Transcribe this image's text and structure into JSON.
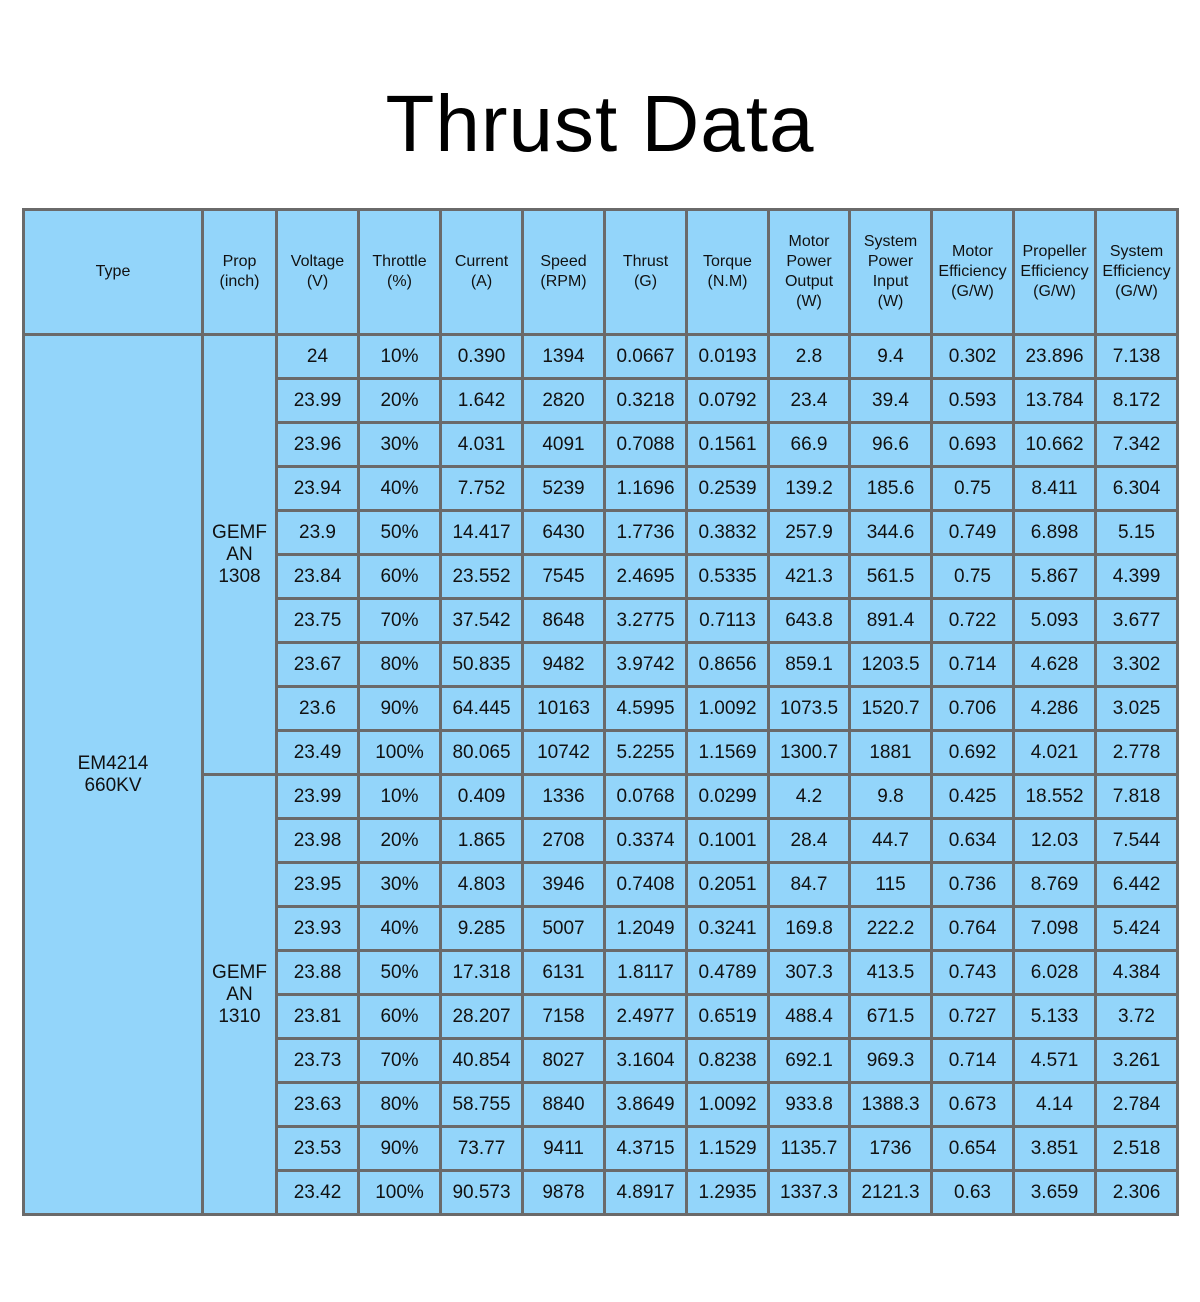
{
  "title": "Thrust Data",
  "table": {
    "headers": [
      [
        "Type"
      ],
      [
        "Prop",
        "(inch)"
      ],
      [
        "Voltage",
        "(V)"
      ],
      [
        "Throttle",
        "(%)"
      ],
      [
        "Current",
        "(A)"
      ],
      [
        "Speed",
        "(RPM)"
      ],
      [
        "Thrust",
        "(G)"
      ],
      [
        "Torque",
        "(N.M)"
      ],
      [
        "Motor",
        "Power",
        "Output",
        "(W)"
      ],
      [
        "System",
        "Power",
        "Input",
        "(W)"
      ],
      [
        "Motor",
        "Efficiency",
        "(G/W)"
      ],
      [
        "Propeller",
        "Efficiency",
        "(G/W)"
      ],
      [
        "System",
        "Efficiency",
        "(G/W)"
      ]
    ],
    "type": [
      "EM4214",
      "660KV"
    ],
    "groups": [
      {
        "prop": [
          "GEMF",
          "AN",
          "1308"
        ],
        "rows": [
          [
            "24",
            "10%",
            "0.390",
            "1394",
            "0.0667",
            "0.0193",
            "2.8",
            "9.4",
            "0.302",
            "23.896",
            "7.138"
          ],
          [
            "23.99",
            "20%",
            "1.642",
            "2820",
            "0.3218",
            "0.0792",
            "23.4",
            "39.4",
            "0.593",
            "13.784",
            "8.172"
          ],
          [
            "23.96",
            "30%",
            "4.031",
            "4091",
            "0.7088",
            "0.1561",
            "66.9",
            "96.6",
            "0.693",
            "10.662",
            "7.342"
          ],
          [
            "23.94",
            "40%",
            "7.752",
            "5239",
            "1.1696",
            "0.2539",
            "139.2",
            "185.6",
            "0.75",
            "8.411",
            "6.304"
          ],
          [
            "23.9",
            "50%",
            "14.417",
            "6430",
            "1.7736",
            "0.3832",
            "257.9",
            "344.6",
            "0.749",
            "6.898",
            "5.15"
          ],
          [
            "23.84",
            "60%",
            "23.552",
            "7545",
            "2.4695",
            "0.5335",
            "421.3",
            "561.5",
            "0.75",
            "5.867",
            "4.399"
          ],
          [
            "23.75",
            "70%",
            "37.542",
            "8648",
            "3.2775",
            "0.7113",
            "643.8",
            "891.4",
            "0.722",
            "5.093",
            "3.677"
          ],
          [
            "23.67",
            "80%",
            "50.835",
            "9482",
            "3.9742",
            "0.8656",
            "859.1",
            "1203.5",
            "0.714",
            "4.628",
            "3.302"
          ],
          [
            "23.6",
            "90%",
            "64.445",
            "10163",
            "4.5995",
            "1.0092",
            "1073.5",
            "1520.7",
            "0.706",
            "4.286",
            "3.025"
          ],
          [
            "23.49",
            "100%",
            "80.065",
            "10742",
            "5.2255",
            "1.1569",
            "1300.7",
            "1881",
            "0.692",
            "4.021",
            "2.778"
          ]
        ]
      },
      {
        "prop": [
          "GEMF",
          "AN",
          "1310"
        ],
        "rows": [
          [
            "23.99",
            "10%",
            "0.409",
            "1336",
            "0.0768",
            "0.0299",
            "4.2",
            "9.8",
            "0.425",
            "18.552",
            "7.818"
          ],
          [
            "23.98",
            "20%",
            "1.865",
            "2708",
            "0.3374",
            "0.1001",
            "28.4",
            "44.7",
            "0.634",
            "12.03",
            "7.544"
          ],
          [
            "23.95",
            "30%",
            "4.803",
            "3946",
            "0.7408",
            "0.2051",
            "84.7",
            "115",
            "0.736",
            "8.769",
            "6.442"
          ],
          [
            "23.93",
            "40%",
            "9.285",
            "5007",
            "1.2049",
            "0.3241",
            "169.8",
            "222.2",
            "0.764",
            "7.098",
            "5.424"
          ],
          [
            "23.88",
            "50%",
            "17.318",
            "6131",
            "1.8117",
            "0.4789",
            "307.3",
            "413.5",
            "0.743",
            "6.028",
            "4.384"
          ],
          [
            "23.81",
            "60%",
            "28.207",
            "7158",
            "2.4977",
            "0.6519",
            "488.4",
            "671.5",
            "0.727",
            "5.133",
            "3.72"
          ],
          [
            "23.73",
            "70%",
            "40.854",
            "8027",
            "3.1604",
            "0.8238",
            "692.1",
            "969.3",
            "0.714",
            "4.571",
            "3.261"
          ],
          [
            "23.63",
            "80%",
            "58.755",
            "8840",
            "3.8649",
            "1.0092",
            "933.8",
            "1388.3",
            "0.673",
            "4.14",
            "2.784"
          ],
          [
            "23.53",
            "90%",
            "73.77",
            "9411",
            "4.3715",
            "1.1529",
            "1135.7",
            "1736",
            "0.654",
            "3.851",
            "2.518"
          ],
          [
            "23.42",
            "100%",
            "90.573",
            "9878",
            "4.8917",
            "1.2935",
            "1337.3",
            "2121.3",
            "0.63",
            "3.659",
            "2.306"
          ]
        ]
      }
    ]
  },
  "colors": {
    "cell_bg": "#93d5fa",
    "border": "#6a6a6a"
  }
}
